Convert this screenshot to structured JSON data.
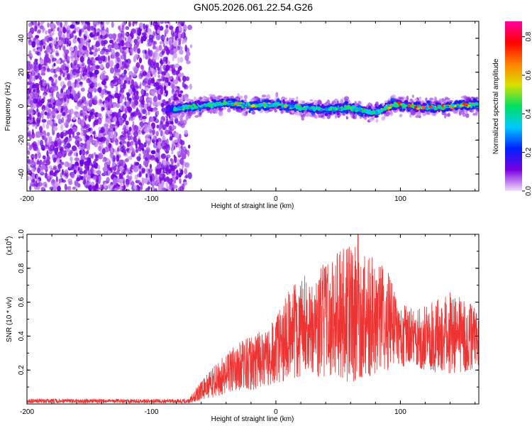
{
  "figure_title": "GN05.2026.061.22.54.G26",
  "chart_data": [
    {
      "type": "heatmap",
      "title": "GN05.2026.061.22.54.G26",
      "xlabel": "Height of straight line (km)",
      "ylabel": "Frequency (Hz)",
      "xlim": [
        -200,
        163
      ],
      "ylim": [
        -50,
        50
      ],
      "x_ticks": [
        -200,
        -100,
        0,
        100
      ],
      "y_ticks": [
        -40,
        -20,
        0,
        20,
        40
      ],
      "x_tick_labels": [
        "-200",
        "-100",
        "0",
        "100"
      ],
      "y_tick_labels": [
        "-40",
        "-20",
        "0",
        "20",
        "40"
      ],
      "noise_region_x": [
        -200,
        -68
      ],
      "signal_band_x": [
        -88,
        163
      ],
      "signal_center_hz": [
        {
          "x": -88,
          "y": -2
        },
        {
          "x": -60,
          "y": 0
        },
        {
          "x": -40,
          "y": 2
        },
        {
          "x": -20,
          "y": 0
        },
        {
          "x": 0,
          "y": 1
        },
        {
          "x": 20,
          "y": -1
        },
        {
          "x": 40,
          "y": -2
        },
        {
          "x": 60,
          "y": -1
        },
        {
          "x": 80,
          "y": -4
        },
        {
          "x": 95,
          "y": 1
        },
        {
          "x": 110,
          "y": 0
        },
        {
          "x": 125,
          "y": -1
        },
        {
          "x": 140,
          "y": 0
        },
        {
          "x": 163,
          "y": 1
        }
      ],
      "colorbar": {
        "label": "Normalized spectral amplitude",
        "range": [
          0.0,
          0.88
        ],
        "ticks": [
          0.0,
          0.2,
          0.4,
          0.6,
          0.8
        ],
        "tick_labels": [
          "0.0",
          "0.2",
          "0.4",
          "0.6",
          "0.8"
        ],
        "colors": [
          "#f2e0f8",
          "#7a00e0",
          "#0020ff",
          "#00c8ff",
          "#00e060",
          "#d8e000",
          "#ff8000",
          "#ff0000",
          "#ff00a0"
        ]
      }
    },
    {
      "type": "line",
      "xlabel": "Height of straight line (km)",
      "ylabel": "SNR (10 * v/v)",
      "y_scale_label": "(x10",
      "y_scale_exp": "4",
      "y_scale_close": ")",
      "xlim": [
        -200,
        163
      ],
      "ylim": [
        0,
        1.0
      ],
      "x_ticks": [
        -200,
        -100,
        0,
        100
      ],
      "y_ticks": [
        0.2,
        0.4,
        0.6,
        0.8,
        1.0
      ],
      "x_tick_labels": [
        "-200",
        "-100",
        "0",
        "100"
      ],
      "y_tick_labels": [
        "0.2",
        "0.4",
        "0.6",
        "0.8",
        "1.0"
      ],
      "color": "#ee3333",
      "envelope": {
        "x": [
          -200,
          -150,
          -100,
          -70,
          -60,
          -50,
          -40,
          -30,
          -20,
          -10,
          0,
          10,
          20,
          30,
          40,
          50,
          60,
          70,
          80,
          90,
          100,
          110,
          120,
          130,
          140,
          150,
          163
        ],
        "low": [
          0.005,
          0.005,
          0.005,
          0.005,
          0.02,
          0.04,
          0.06,
          0.08,
          0.08,
          0.1,
          0.12,
          0.14,
          0.16,
          0.16,
          0.16,
          0.16,
          0.12,
          0.16,
          0.16,
          0.2,
          0.22,
          0.22,
          0.2,
          0.18,
          0.18,
          0.18,
          0.2
        ],
        "high": [
          0.03,
          0.03,
          0.03,
          0.03,
          0.14,
          0.22,
          0.3,
          0.36,
          0.4,
          0.44,
          0.52,
          0.66,
          0.76,
          0.8,
          0.86,
          0.9,
          0.94,
          0.9,
          0.86,
          0.78,
          0.6,
          0.56,
          0.58,
          0.62,
          0.66,
          0.62,
          0.56
        ]
      },
      "peak": {
        "x": 66,
        "y": 1.0
      }
    }
  ]
}
